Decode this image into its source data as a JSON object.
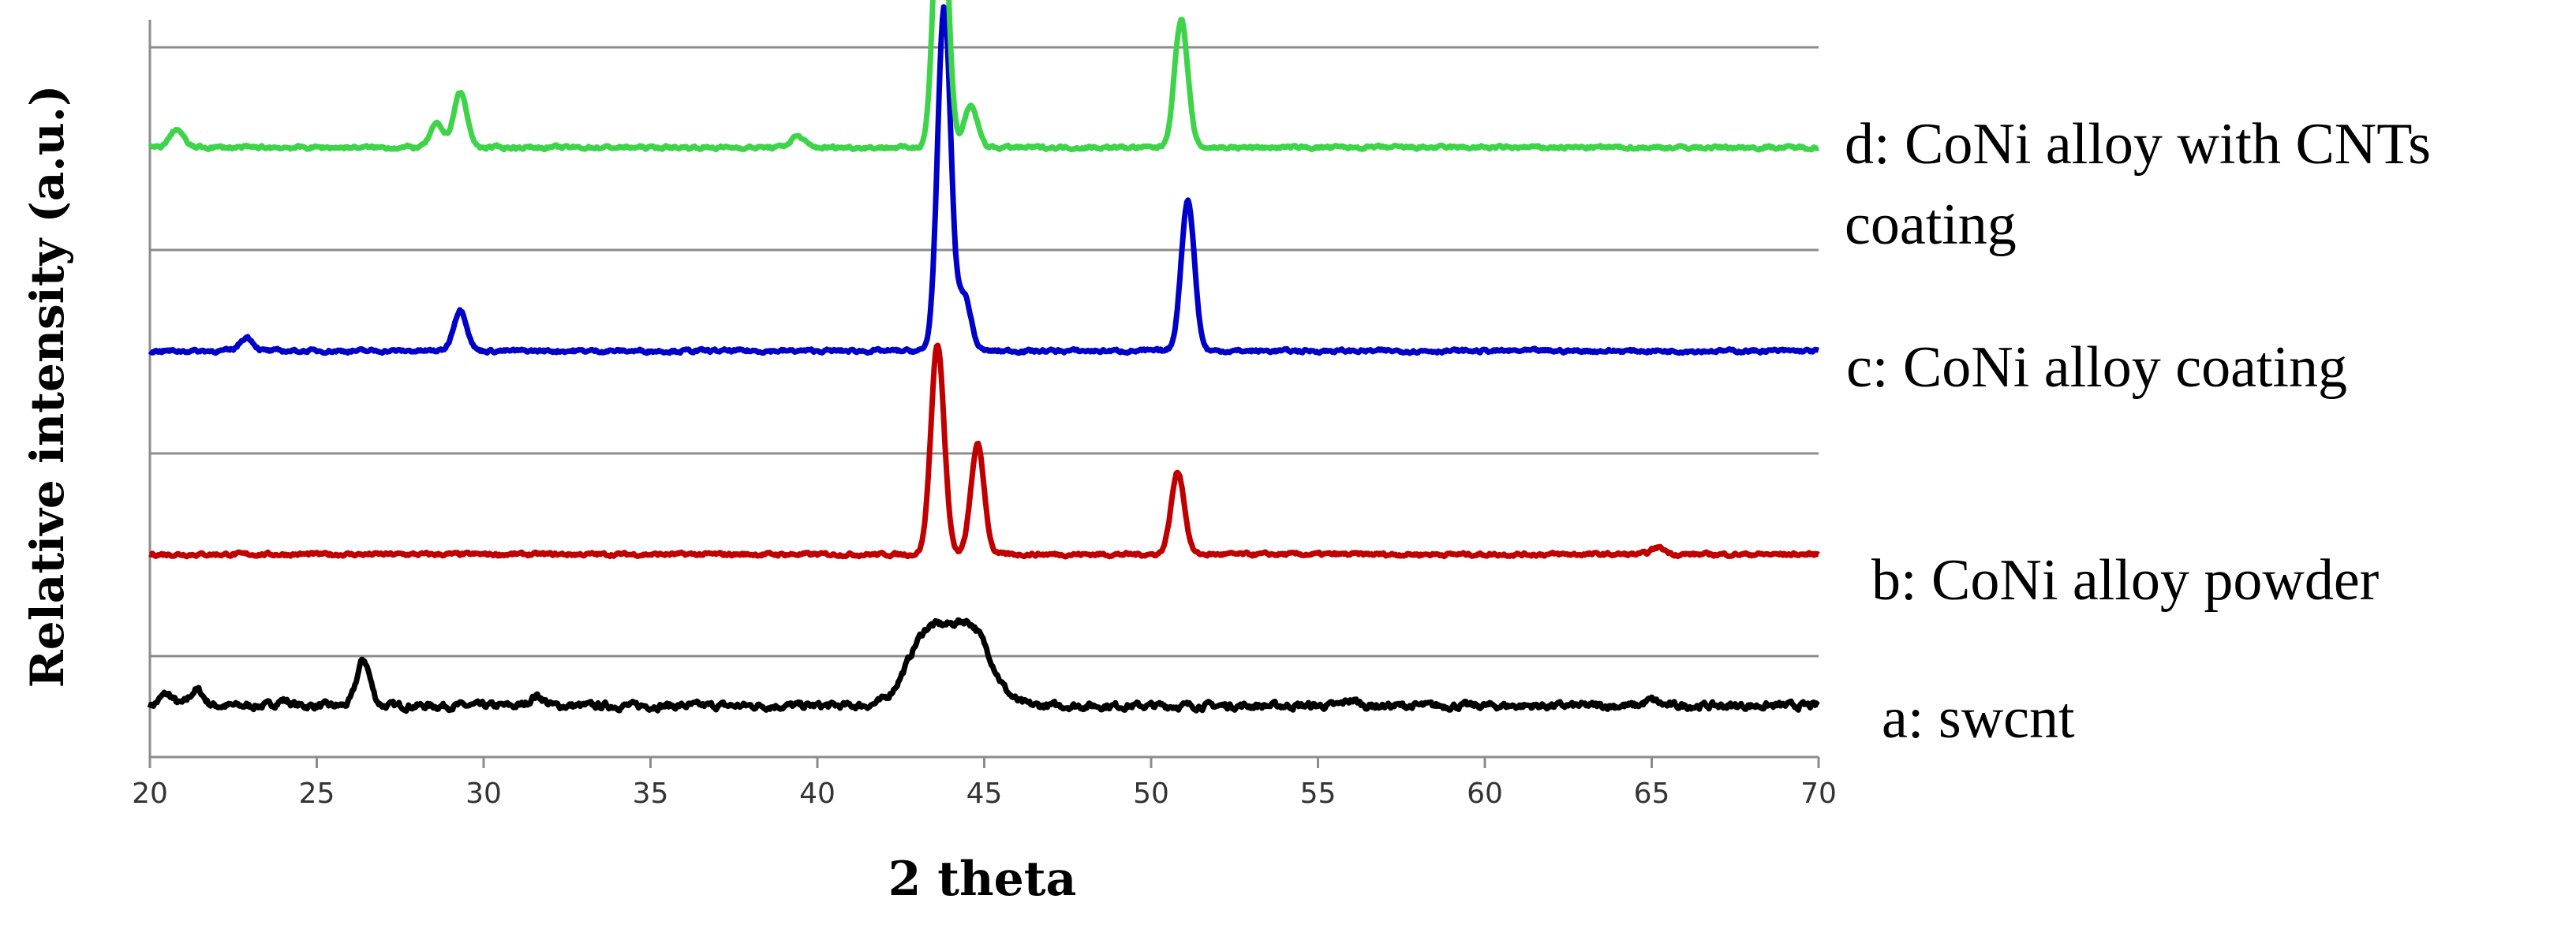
{
  "chart_data": {
    "type": "line",
    "title": "",
    "xlabel": "2 theta",
    "ylabel": "Relative intensity (a.u.)",
    "xlim": [
      20,
      70
    ],
    "xticks": [
      "20",
      "25",
      "30",
      "35",
      "40",
      "45",
      "50",
      "55",
      "60",
      "65",
      "70"
    ],
    "grid": true,
    "stacked_offsets": true,
    "series": [
      {
        "name": "a: swcnt",
        "color": "#000000",
        "peaks": [
          {
            "x": 20.5,
            "height": 0.25
          },
          {
            "x": 21.4,
            "height": 0.35
          },
          {
            "x": 24.0,
            "height": 0.12
          },
          {
            "x": 26.4,
            "height": 1.0
          },
          {
            "x": 31.6,
            "height": 0.22
          },
          {
            "x": 43.3,
            "height": 1.55
          },
          {
            "x": 44.6,
            "height": 1.65
          },
          {
            "x": 56.0,
            "height": 0.12
          },
          {
            "x": 65.0,
            "height": 0.12
          }
        ],
        "broad_hump": {
          "center": 44.0,
          "height": 1.55
        }
      },
      {
        "name": "b: CoNi alloy powder",
        "color": "#c00000",
        "peaks": [
          {
            "x": 43.6,
            "height": 4.6
          },
          {
            "x": 44.8,
            "height": 2.4
          },
          {
            "x": 50.8,
            "height": 1.8
          },
          {
            "x": 65.2,
            "height": 0.15
          }
        ]
      },
      {
        "name": "c: CoNi alloy coating",
        "color": "#0000c8",
        "peaks": [
          {
            "x": 22.9,
            "height": 0.3
          },
          {
            "x": 29.3,
            "height": 0.9
          },
          {
            "x": 43.8,
            "height": 7.5
          },
          {
            "x": 44.4,
            "height": 1.2
          },
          {
            "x": 51.1,
            "height": 3.3
          }
        ]
      },
      {
        "name": "d: CoNi alloy with CNTs coating",
        "name_lines": [
          "d: CoNi alloy with CNTs",
          "coating"
        ],
        "color": "#3ed44a",
        "peaks": [
          {
            "x": 20.8,
            "height": 0.4
          },
          {
            "x": 28.6,
            "height": 0.5
          },
          {
            "x": 29.3,
            "height": 1.2
          },
          {
            "x": 39.4,
            "height": 0.25
          },
          {
            "x": 43.7,
            "height": 6.7
          },
          {
            "x": 44.6,
            "height": 0.9
          },
          {
            "x": 50.9,
            "height": 2.8
          }
        ]
      }
    ]
  }
}
